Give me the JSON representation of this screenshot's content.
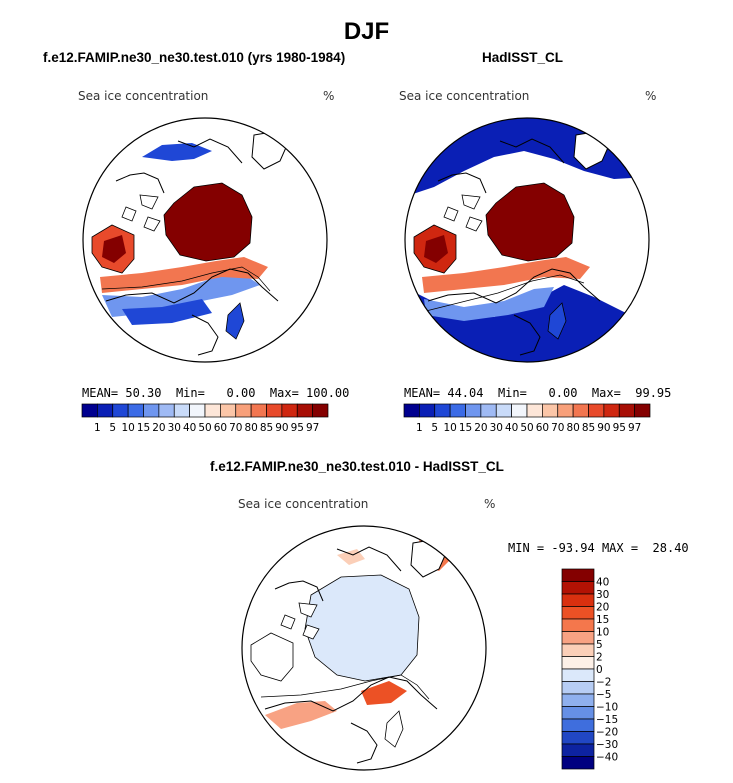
{
  "title": "DJF",
  "panels": [
    {
      "title": "f.e12.FAMIP.ne30_ne30.test.010 (yrs 1980-1984)",
      "variable": "Sea ice concentration",
      "units": "%",
      "stats": {
        "mean_label": "MEAN=",
        "mean": "50.30",
        "min_label": "Min=",
        "min": "0.00",
        "max_label": "Max=",
        "max": "100.00"
      }
    },
    {
      "title": "HadISST_CL",
      "variable": "Sea ice concentration",
      "units": "%",
      "stats": {
        "mean_label": "MEAN=",
        "mean": "44.04",
        "min_label": "Min=",
        "min": "0.00",
        "max_label": "Max=",
        "max": "99.95"
      }
    },
    {
      "title": "f.e12.FAMIP.ne30_ne30.test.010 - HadISST_CL",
      "variable": "Sea ice concentration",
      "units": "%",
      "stats": {
        "min_label": "MIN =",
        "min": "-93.94",
        "max_label": "MAX =",
        "max": "28.40"
      }
    }
  ],
  "chart_data": [
    {
      "type": "heatmap",
      "projection": "north-polar-stereographic",
      "title": "f.e12.FAMIP.ne30_ne30.test.010 (yrs 1980-1984)",
      "variable": "Sea ice concentration",
      "units": "%",
      "colorbar_orientation": "horizontal",
      "colorbar_levels": [
        1,
        5,
        10,
        15,
        20,
        30,
        40,
        50,
        60,
        70,
        80,
        85,
        90,
        95,
        97
      ],
      "colorbar_colors": [
        "#00008f",
        "#0a1fb5",
        "#1f47d6",
        "#3b6be6",
        "#6f96ef",
        "#9fbaf4",
        "#c9dbf9",
        "#f2f6fc",
        "#fde6d8",
        "#fbc6a8",
        "#f8a07a",
        "#f27650",
        "#e84a2b",
        "#cf2710",
        "#a70e05",
        "#840000"
      ],
      "mean": 50.3,
      "min": 0.0,
      "max": 100.0
    },
    {
      "type": "heatmap",
      "projection": "north-polar-stereographic",
      "title": "HadISST_CL",
      "variable": "Sea ice concentration",
      "units": "%",
      "colorbar_orientation": "horizontal",
      "colorbar_levels": [
        1,
        5,
        10,
        15,
        20,
        30,
        40,
        50,
        60,
        70,
        80,
        85,
        90,
        95,
        97
      ],
      "colorbar_colors": [
        "#00008f",
        "#0a1fb5",
        "#1f47d6",
        "#3b6be6",
        "#6f96ef",
        "#9fbaf4",
        "#c9dbf9",
        "#f2f6fc",
        "#fde6d8",
        "#fbc6a8",
        "#f8a07a",
        "#f27650",
        "#e84a2b",
        "#cf2710",
        "#a70e05",
        "#840000"
      ],
      "mean": 44.04,
      "min": 0.0,
      "max": 99.95
    },
    {
      "type": "heatmap",
      "projection": "north-polar-stereographic",
      "title": "f.e12.FAMIP.ne30_ne30.test.010 - HadISST_CL",
      "variable": "Sea ice concentration",
      "units": "%",
      "colorbar_orientation": "vertical",
      "colorbar_levels": [
        40,
        30,
        20,
        15,
        10,
        5,
        2,
        0,
        -2,
        -5,
        -10,
        -15,
        -20,
        -30,
        -40
      ],
      "colorbar_colors": [
        "#840000",
        "#b31204",
        "#d9300f",
        "#ec5125",
        "#f4774c",
        "#f8a283",
        "#fbcfb8",
        "#fdf0e7",
        "#dbe8fa",
        "#b7cdf4",
        "#8fb0ee",
        "#6690e6",
        "#3f6edd",
        "#2147c4",
        "#0d23a1",
        "#000080"
      ],
      "min": -93.94,
      "max": 28.4
    }
  ]
}
